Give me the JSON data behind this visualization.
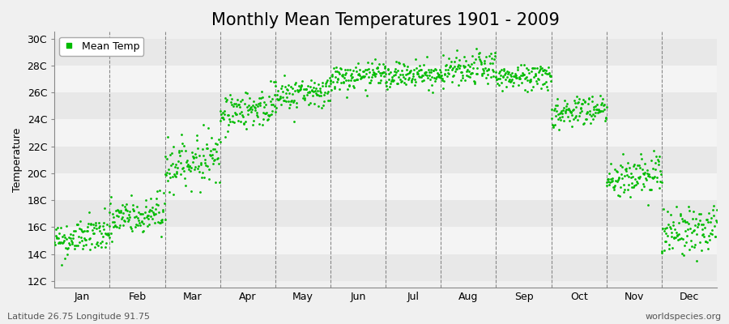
{
  "title": "Monthly Mean Temperatures 1901 - 2009",
  "ylabel": "Temperature",
  "footer_left": "Latitude 26.75 Longitude 91.75",
  "footer_right": "worldspecies.org",
  "legend_label": "Mean Temp",
  "dot_color": "#00bb00",
  "background_color": "#f0f0f0",
  "plot_bg_color": "#f0f0f0",
  "ytick_labels": [
    "12C",
    "14C",
    "16C",
    "18C",
    "20C",
    "22C",
    "24C",
    "26C",
    "28C",
    "30C"
  ],
  "ytick_values": [
    12,
    14,
    16,
    18,
    20,
    22,
    24,
    26,
    28,
    30
  ],
  "ylim": [
    11.5,
    30.5
  ],
  "months": [
    "Jan",
    "Feb",
    "Mar",
    "Apr",
    "May",
    "Jun",
    "Jul",
    "Aug",
    "Sep",
    "Oct",
    "Nov",
    "Dec"
  ],
  "month_base_temps": [
    15.0,
    16.5,
    20.5,
    24.5,
    25.8,
    27.0,
    27.2,
    27.5,
    27.0,
    24.5,
    19.5,
    15.5
  ],
  "month_temp_trend": [
    0.005,
    0.005,
    0.008,
    0.005,
    0.003,
    0.003,
    0.003,
    0.003,
    0.003,
    0.003,
    0.005,
    0.005
  ],
  "month_std_temps": [
    0.7,
    0.8,
    0.9,
    0.7,
    0.6,
    0.5,
    0.5,
    0.6,
    0.5,
    0.6,
    0.8,
    0.9
  ],
  "n_years": 109,
  "start_year": 1901,
  "seed": 42,
  "title_fontsize": 15,
  "axis_fontsize": 9,
  "tick_fontsize": 9,
  "footer_fontsize": 8,
  "marker_size": 4,
  "grid_color": "#888888",
  "grid_linestyle": "--",
  "grid_linewidth": 0.8,
  "stripe_colors": [
    "#e8e8e8",
    "#f4f4f4"
  ]
}
